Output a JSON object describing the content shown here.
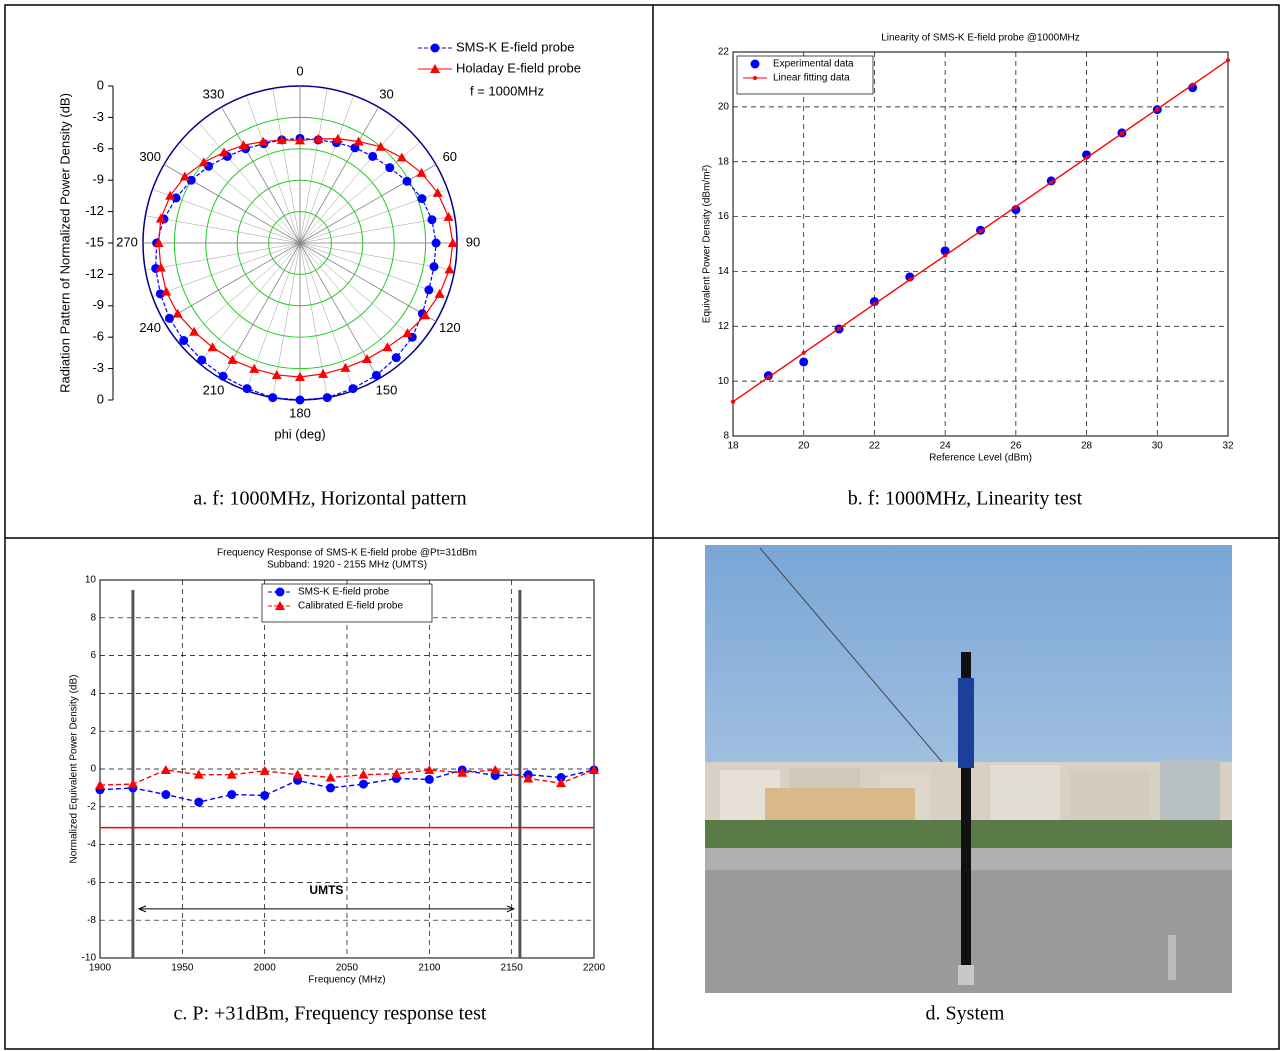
{
  "chart_data": [
    {
      "type": "polar",
      "caption": "a. f: 1000MHz, Horizontal pattern",
      "ylabel": "Radiation Pattern of Normalized Power Density (dB)",
      "xlabel": "phi (deg)",
      "annotation": "f = 1000MHz",
      "rlim": [
        -15,
        0
      ],
      "rticks": [
        0,
        -3,
        -6,
        -9,
        -12,
        -15
      ],
      "thetaticks": [
        0,
        30,
        60,
        90,
        120,
        150,
        180,
        210,
        240,
        270,
        300,
        330
      ],
      "theta": [
        0,
        10,
        20,
        30,
        40,
        50,
        60,
        70,
        80,
        90,
        100,
        110,
        120,
        130,
        140,
        150,
        160,
        170,
        180,
        190,
        200,
        210,
        220,
        230,
        240,
        250,
        260,
        270,
        280,
        290,
        300,
        310,
        320,
        330,
        340,
        350
      ],
      "series": [
        {
          "name": "SMS-K E-field probe",
          "color": "#0000ff",
          "marker": "circle",
          "dash": true,
          "values": [
            -5.0,
            -5.0,
            -4.8,
            -4.5,
            -4.2,
            -3.8,
            -3.2,
            -2.6,
            -2.2,
            -2.0,
            -2.0,
            -1.9,
            -1.5,
            -1.0,
            -0.7,
            -0.4,
            -0.2,
            0,
            0,
            0,
            -0.2,
            -0.3,
            -0.4,
            -0.5,
            -0.6,
            -0.8,
            -1.0,
            -1.3,
            -1.8,
            -2.4,
            -3.0,
            -3.6,
            -4.2,
            -4.6,
            -4.9,
            -5.0
          ]
        },
        {
          "name": "Holaday E-field probe",
          "color": "#ff0000",
          "marker": "triangle",
          "dash": false,
          "values": [
            -5.2,
            -4.9,
            -4.4,
            -3.8,
            -3.0,
            -2.3,
            -1.6,
            -1.0,
            -0.6,
            -0.4,
            -0.5,
            -0.8,
            -1.2,
            -1.6,
            -2.0,
            -2.2,
            -2.3,
            -2.3,
            -2.2,
            -2.2,
            -2.2,
            -2.1,
            -2.0,
            -1.8,
            -1.5,
            -1.4,
            -1.5,
            -1.5,
            -1.5,
            -1.8,
            -2.3,
            -3.0,
            -3.7,
            -4.2,
            -4.7,
            -5.0
          ]
        }
      ]
    },
    {
      "type": "scatter",
      "caption": "b. f: 1000MHz, Linearity test",
      "title": "Linearity of SMS-K E-field probe @1000MHz",
      "xlabel": "Reference Level (dBm)",
      "ylabel": "Equivalent Power Density (dBm/m²)",
      "xlim": [
        18,
        32
      ],
      "xticks": [
        18,
        20,
        22,
        24,
        26,
        28,
        30,
        32
      ],
      "ylim": [
        8,
        22
      ],
      "yticks": [
        8,
        10,
        12,
        14,
        16,
        18,
        20,
        22
      ],
      "grid": true,
      "legend": "top-left",
      "series": [
        {
          "name": "Experimental data",
          "color": "#0000ff",
          "mode": "markers",
          "marker": "circle",
          "x": [
            19,
            20,
            21,
            22,
            23,
            24,
            25,
            26,
            27,
            28,
            29,
            30,
            31
          ],
          "values": [
            10.2,
            10.7,
            11.9,
            12.9,
            13.8,
            14.75,
            15.5,
            16.25,
            17.3,
            18.25,
            19.05,
            19.9,
            20.7
          ]
        },
        {
          "name": "Linear fitting data",
          "color": "#ff0000",
          "mode": "lines+markers",
          "marker": "dot",
          "x": [
            18,
            19,
            20,
            21,
            22,
            23,
            24,
            25,
            26,
            27,
            28,
            29,
            30,
            31,
            32
          ],
          "values": [
            9.25,
            10.14,
            11.03,
            11.92,
            12.81,
            13.7,
            14.58,
            15.47,
            16.36,
            17.25,
            18.14,
            19.03,
            19.92,
            20.81,
            21.7
          ]
        }
      ]
    },
    {
      "type": "line",
      "caption": "c. P: +31dBm, Frequency response test",
      "title": "Frequency Response of SMS-K E-field probe @Pt=31dBm",
      "subtitle": "Subband: 1920 - 2155 MHz (UMTS)",
      "xlabel": "Frequency (MHz)",
      "ylabel": "Normalized Equivalent Power Density (dB)",
      "xlim": [
        1900,
        2200
      ],
      "xticks": [
        1900,
        1950,
        2000,
        2050,
        2100,
        2150,
        2200
      ],
      "ylim": [
        -10,
        10
      ],
      "yticks": [
        -10,
        -8,
        -6,
        -4,
        -2,
        0,
        2,
        4,
        6,
        8,
        10
      ],
      "grid": true,
      "legend": "top-center",
      "vlines": [
        1920,
        2155
      ],
      "hlines": [
        -3.1
      ],
      "annotation": "UMTS",
      "series": [
        {
          "name": "SMS-K E-field probe",
          "color": "#0000ff",
          "mode": "lines+markers",
          "marker": "circle",
          "dash": true,
          "x": [
            1900,
            1920,
            1940,
            1960,
            1980,
            2000,
            2020,
            2040,
            2060,
            2080,
            2100,
            2120,
            2140,
            2160,
            2180,
            2200
          ],
          "values": [
            -1.1,
            -1.0,
            -1.35,
            -1.75,
            -1.35,
            -1.4,
            -0.6,
            -1.0,
            -0.8,
            -0.5,
            -0.55,
            -0.05,
            -0.35,
            -0.3,
            -0.45,
            -0.05
          ]
        },
        {
          "name": "Calibrated E-field probe",
          "color": "#ff0000",
          "mode": "lines+markers",
          "marker": "triangle",
          "dash": true,
          "x": [
            1900,
            1920,
            1940,
            1960,
            1980,
            2000,
            2020,
            2040,
            2060,
            2080,
            2100,
            2120,
            2140,
            2160,
            2180,
            2200
          ],
          "values": [
            -0.85,
            -0.8,
            -0.05,
            -0.3,
            -0.3,
            -0.1,
            -0.3,
            -0.45,
            -0.3,
            -0.25,
            -0.05,
            -0.2,
            -0.05,
            -0.5,
            -0.75,
            -0.05
          ]
        }
      ]
    }
  ],
  "photo": {
    "caption": "d. System"
  }
}
